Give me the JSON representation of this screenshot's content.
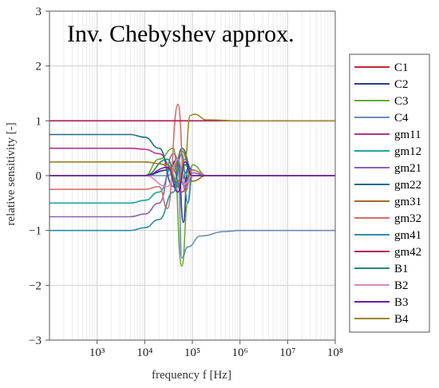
{
  "chart_data": {
    "type": "line",
    "title": "Inv. Chebyshev approx.",
    "xlabel": "frequency f [Hz]",
    "ylabel": "relative sensitivity [-]",
    "x_scale": "log",
    "xlim": [
      100,
      100000000
    ],
    "ylim": [
      -3,
      3
    ],
    "x_tick_labels": [
      "10³",
      "10⁴",
      "10⁵",
      "10⁶",
      "10⁷",
      "10⁸"
    ],
    "y_tick_labels": [
      "−3",
      "−2",
      "−1",
      "0",
      "1",
      "2",
      "3"
    ],
    "grid": true,
    "legend_position": "right",
    "series": [
      {
        "name": "C1",
        "color": "#c0283c",
        "x": [
          100,
          10000,
          30000,
          50000,
          70000,
          100000,
          1000000,
          100000000
        ],
        "y": [
          0,
          0,
          0.1,
          0.25,
          -0.05,
          0,
          0,
          0
        ]
      },
      {
        "name": "C2",
        "color": "#2e3a8c",
        "x": [
          100,
          10000,
          30000,
          50000,
          65000,
          80000,
          100000,
          200000,
          100000000
        ],
        "y": [
          0,
          0,
          0.1,
          0.3,
          -0.85,
          0.15,
          0.1,
          0,
          0
        ]
      },
      {
        "name": "C3",
        "color": "#6aa837",
        "x": [
          100,
          10000,
          20000,
          40000,
          60000,
          80000,
          100000,
          200000,
          100000000
        ],
        "y": [
          0,
          0,
          0.3,
          0.5,
          -1.65,
          -0.5,
          0.2,
          0,
          0
        ]
      },
      {
        "name": "C4",
        "color": "#6d8bb8",
        "x": [
          100,
          10000,
          30000,
          50000,
          60000,
          80000,
          150000,
          500000,
          1000000,
          100000000
        ],
        "y": [
          0,
          0,
          0,
          0.2,
          -1.5,
          -1.3,
          -1.1,
          -1.02,
          -1,
          -1
        ]
      },
      {
        "name": "gm11",
        "color": "#b4328a",
        "x": [
          100,
          5000,
          10000,
          20000,
          40000,
          60000,
          100000,
          200000,
          100000000
        ],
        "y": [
          0.5,
          0.5,
          0.48,
          0.4,
          0.1,
          -0.3,
          0.1,
          0,
          0
        ]
      },
      {
        "name": "gm12",
        "color": "#21a598",
        "x": [
          100,
          5000,
          10000,
          20000,
          40000,
          60000,
          100000,
          200000,
          100000000
        ],
        "y": [
          -0.5,
          -0.5,
          -0.45,
          -0.3,
          0.2,
          0.1,
          -0.1,
          0,
          0
        ]
      },
      {
        "name": "gm21",
        "color": "#8a63b0",
        "x": [
          100,
          5000,
          10000,
          20000,
          40000,
          70000,
          100000,
          200000,
          100000000
        ],
        "y": [
          -0.75,
          -0.75,
          -0.7,
          -0.5,
          0.4,
          -0.2,
          0.05,
          0,
          0
        ]
      },
      {
        "name": "gm22",
        "color": "#1f6a8a",
        "x": [
          100,
          5000,
          10000,
          20000,
          40000,
          60000,
          100000,
          200000,
          100000000
        ],
        "y": [
          0.75,
          0.75,
          0.7,
          0.5,
          -0.2,
          0.5,
          0.1,
          0,
          0
        ]
      },
      {
        "name": "gm31",
        "color": "#a06a2a",
        "x": [
          100,
          10000,
          20000,
          40000,
          60000,
          100000,
          200000,
          100000000
        ],
        "y": [
          0.25,
          0.25,
          0.22,
          0.1,
          0.45,
          -0.1,
          0,
          0
        ]
      },
      {
        "name": "gm32",
        "color": "#d6706a",
        "x": [
          100,
          10000,
          20000,
          30000,
          50000,
          70000,
          100000,
          200000,
          100000000
        ],
        "y": [
          -0.25,
          -0.25,
          -0.2,
          -0.6,
          1.3,
          -0.3,
          0.1,
          0,
          0
        ]
      },
      {
        "name": "gm41",
        "color": "#2c8ea6",
        "x": [
          100,
          5000,
          10000,
          20000,
          40000,
          60000,
          80000,
          100000,
          200000,
          100000000
        ],
        "y": [
          -1,
          -1,
          -0.95,
          -0.8,
          -0.3,
          0.4,
          -0.5,
          0,
          0,
          0
        ]
      },
      {
        "name": "gm42",
        "color": "#b01652",
        "x": [
          100,
          1000000,
          100000000
        ],
        "y": [
          1,
          1,
          1
        ]
      },
      {
        "name": "B1",
        "color": "#1c8a6a",
        "x": [
          100,
          10000,
          30000,
          50000,
          70000,
          100000,
          200000,
          100000000
        ],
        "y": [
          0,
          0,
          0.3,
          -0.2,
          0.2,
          0,
          0,
          0
        ]
      },
      {
        "name": "B2",
        "color": "#d68ac0",
        "x": [
          100,
          10000,
          30000,
          50000,
          70000,
          100000,
          200000,
          100000000
        ],
        "y": [
          0,
          0,
          -0.2,
          0.3,
          -0.15,
          0,
          0,
          0
        ]
      },
      {
        "name": "B3",
        "color": "#6a1fa0",
        "x": [
          100,
          10000,
          30000,
          50000,
          70000,
          100000,
          200000,
          100000000
        ],
        "y": [
          0,
          0,
          0.15,
          -0.3,
          0.25,
          0,
          0,
          0
        ]
      },
      {
        "name": "B4",
        "color": "#9a8a2a",
        "x": [
          100,
          10000,
          30000,
          50000,
          70000,
          90000,
          110000,
          200000,
          1000000,
          100000000
        ],
        "y": [
          0.25,
          0.25,
          0.2,
          -0.1,
          0.3,
          1.1,
          1.12,
          1.02,
          1,
          1
        ]
      }
    ]
  }
}
